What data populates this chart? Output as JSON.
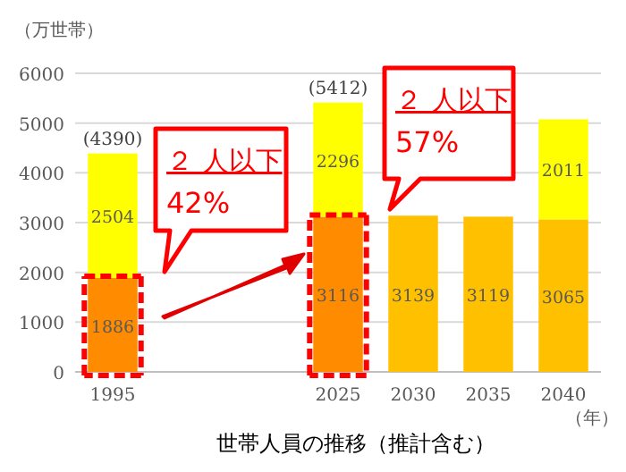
{
  "chart_data": {
    "type": "bar",
    "stacked": true,
    "ylabel": "（万世帯）",
    "xlabel": "世帯人員の推移（推計含む）",
    "categories": [
      "1995",
      null,
      null,
      "2025",
      "2030",
      "2035",
      "2040"
    ],
    "series": [
      {
        "colors": [
          "#ff8c00",
          null,
          null,
          "#ff8c00",
          "#ffc000",
          "#ffc000",
          "#ffc000"
        ],
        "values": [
          1886,
          null,
          null,
          3116,
          3139,
          3119,
          3065
        ],
        "value_labels": [
          "1886",
          null,
          null,
          "3116",
          "3139",
          "3119",
          "3065"
        ]
      },
      {
        "color": "#ffff00",
        "values": [
          2504,
          null,
          null,
          2296,
          null,
          null,
          2011
        ],
        "value_labels": [
          "2504",
          null,
          null,
          "2296",
          null,
          null,
          "2011"
        ]
      }
    ],
    "totals": [
      "(4390)",
      null,
      null,
      "(5412)",
      null,
      null,
      null
    ],
    "ylim": [
      0,
      6000
    ],
    "yticks": [
      0,
      1000,
      2000,
      3000,
      4000,
      5000,
      6000
    ],
    "grid": "y",
    "annotations": [
      "２ 人以下",
      "42%",
      "２ 人以下",
      "57%",
      "（年）"
    ]
  }
}
